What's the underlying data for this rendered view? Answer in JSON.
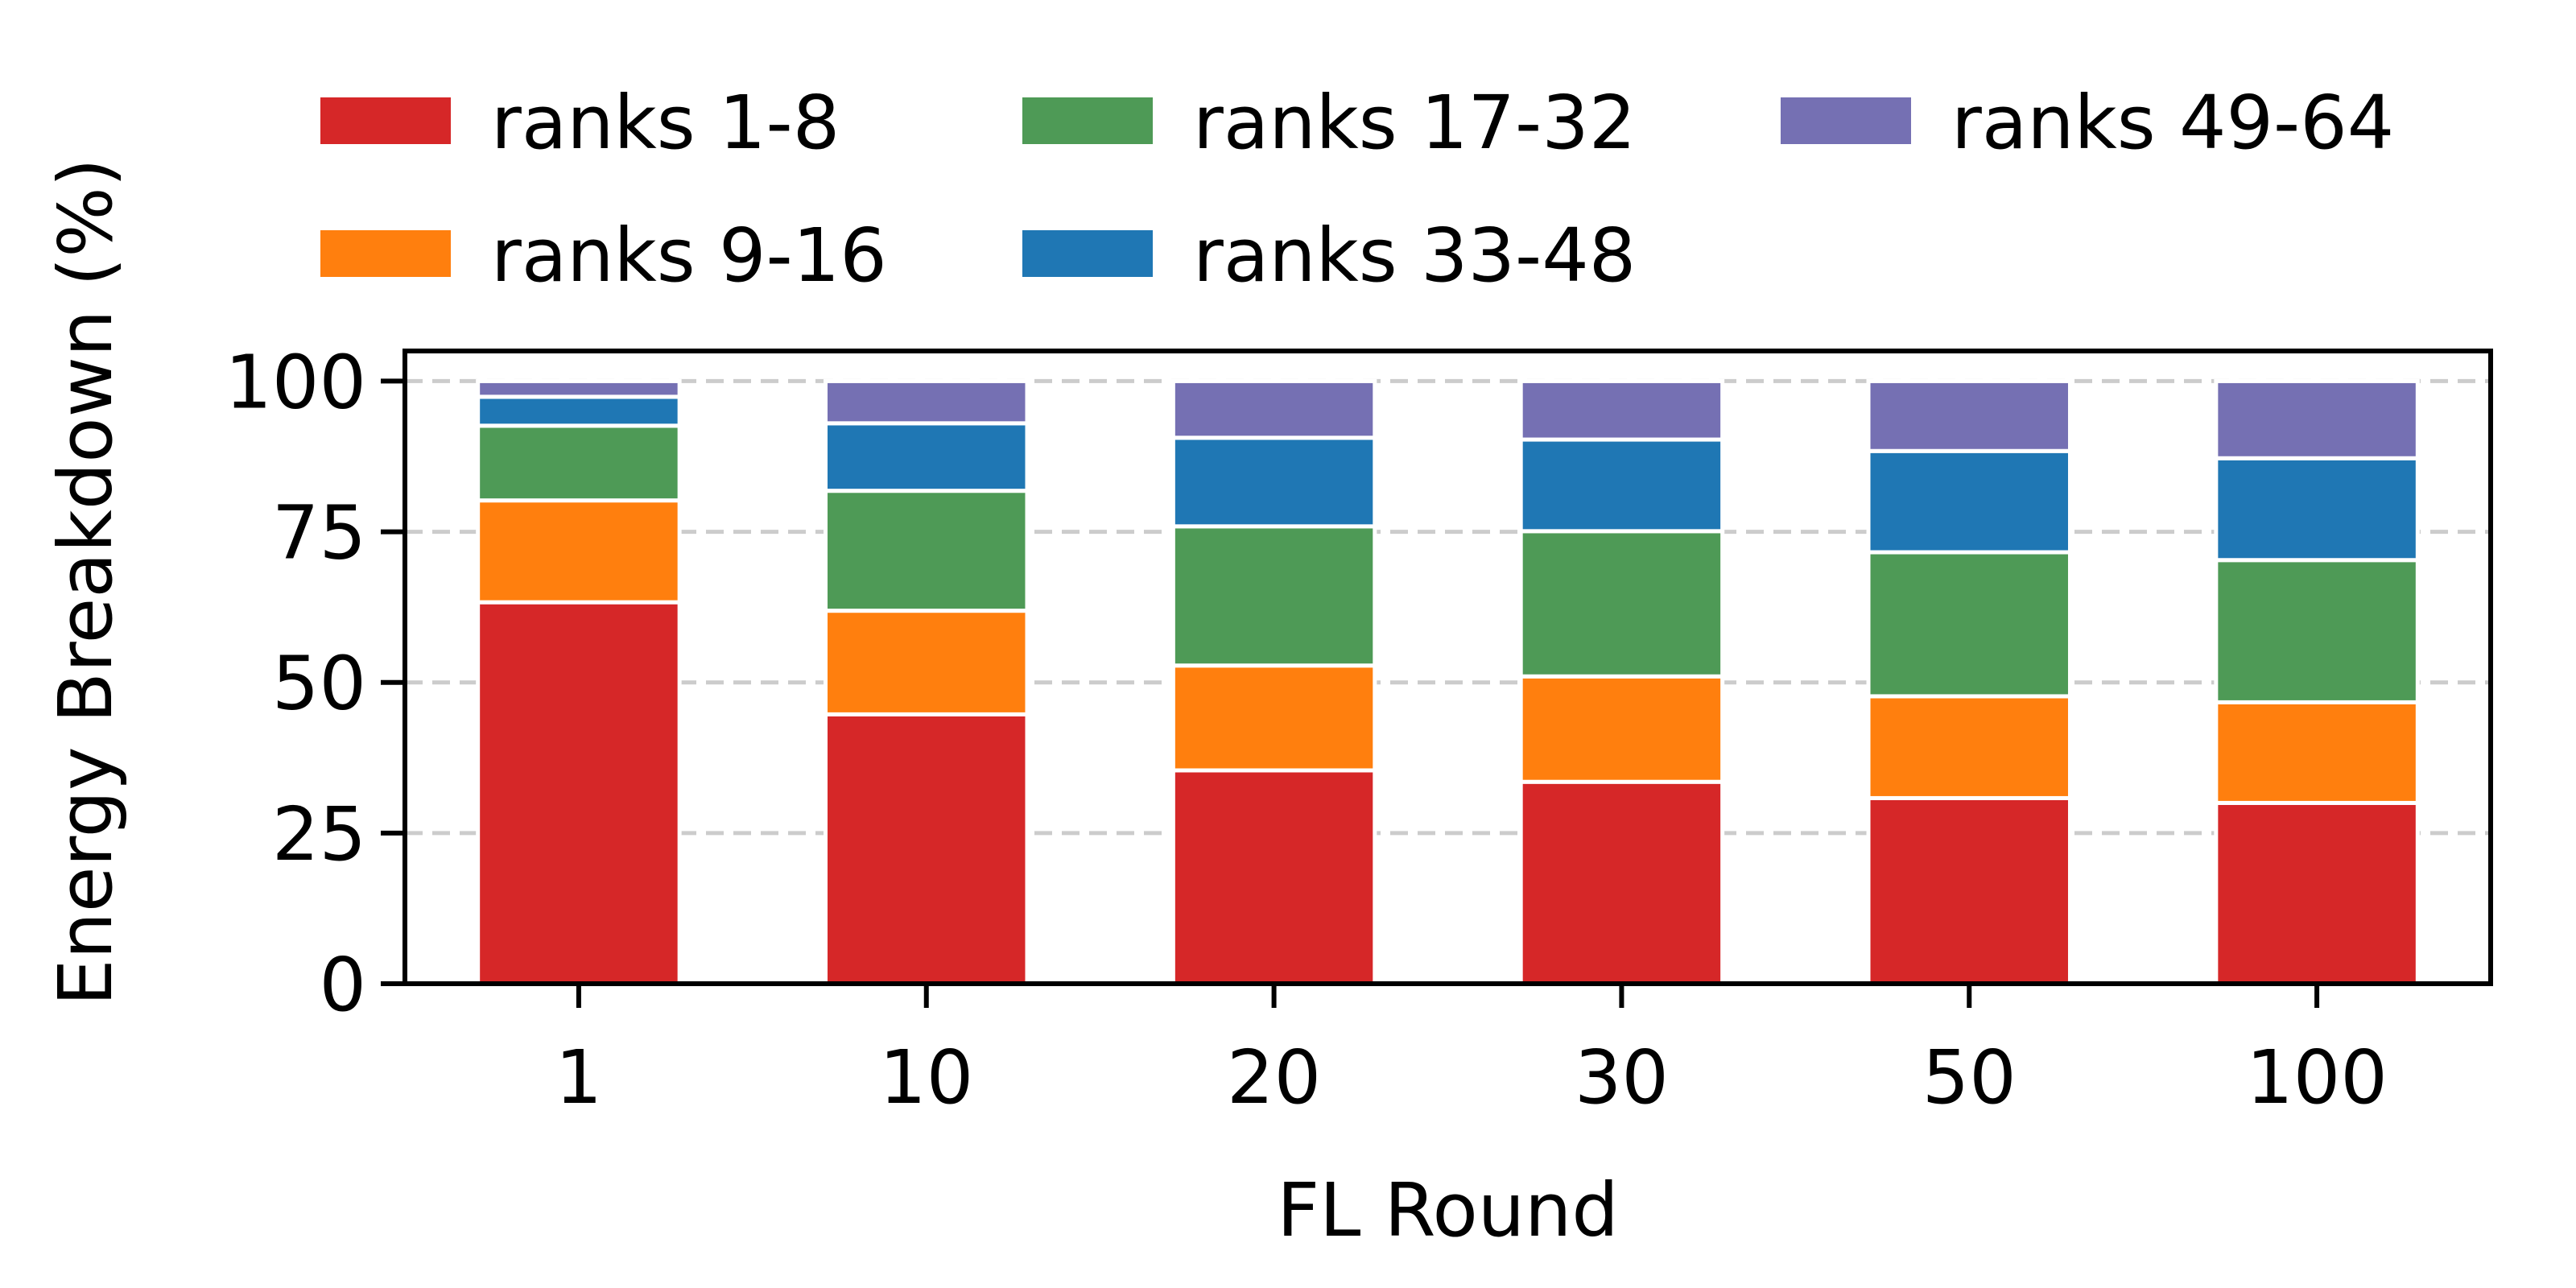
{
  "chart_data": {
    "type": "bar",
    "stacked": true,
    "title": "",
    "xlabel": "FL Round",
    "ylabel": "Energy Breakdown (%)",
    "categories": [
      "1",
      "10",
      "20",
      "30",
      "50",
      "100"
    ],
    "ylim": [
      0,
      105
    ],
    "yticks": [
      0,
      25,
      50,
      75,
      100
    ],
    "grid": "horizontal-dashed",
    "legend_position": "top",
    "series": [
      {
        "name": "ranks 1-8",
        "color": "#d62728",
        "values": [
          63.3,
          44.7,
          35.4,
          33.5,
          30.8,
          30.0
        ]
      },
      {
        "name": "ranks 9-16",
        "color": "#ff7f0e",
        "values": [
          16.9,
          17.2,
          17.4,
          17.5,
          16.9,
          16.7
        ]
      },
      {
        "name": "ranks 17-32",
        "color": "#4e9a56",
        "values": [
          12.4,
          19.9,
          23.1,
          24.1,
          23.9,
          23.6
        ]
      },
      {
        "name": "ranks 33-48",
        "color": "#1f77b4",
        "values": [
          4.8,
          11.2,
          14.7,
          15.2,
          16.8,
          16.9
        ]
      },
      {
        "name": "ranks 49-64",
        "color": "#7570b3",
        "values": [
          2.6,
          7.0,
          9.4,
          9.7,
          11.6,
          12.8
        ]
      }
    ]
  }
}
